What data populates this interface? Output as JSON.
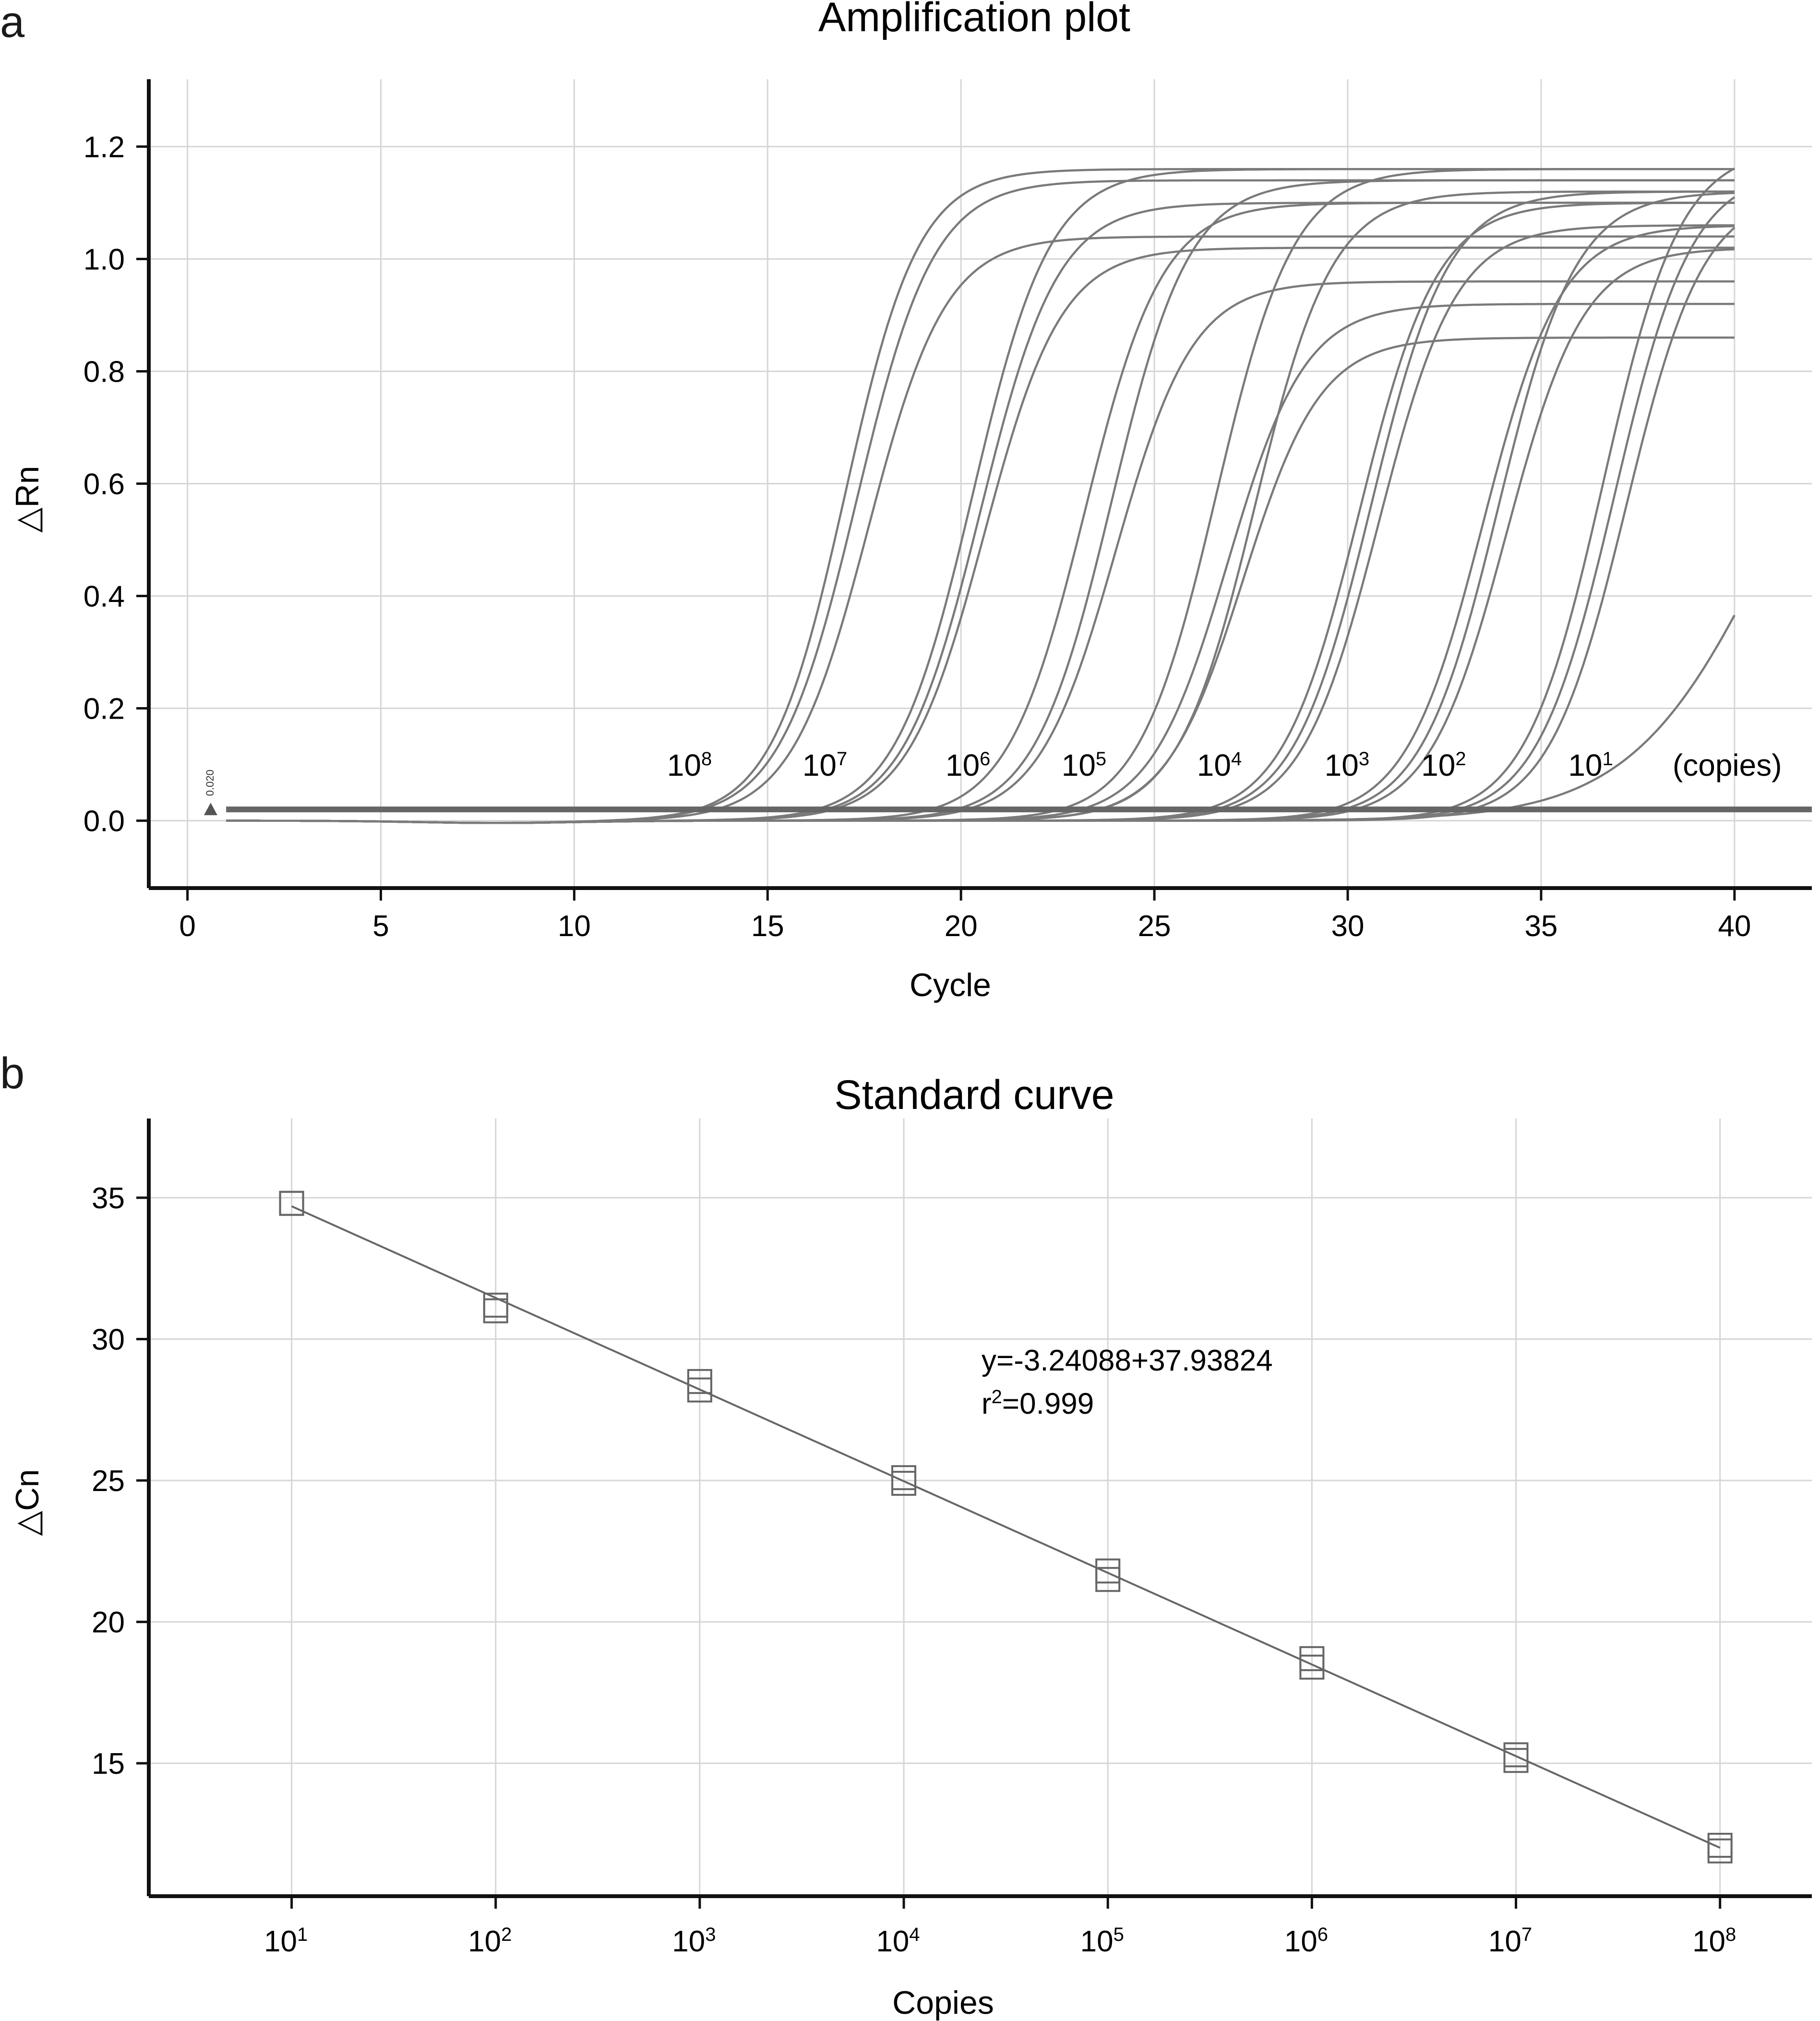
{
  "panels": {
    "a": {
      "letter": "a"
    },
    "b": {
      "letter": "b"
    }
  },
  "chart_data": [
    {
      "type": "line",
      "title": "Amplification plot",
      "xlabel": "Cycle",
      "ylabel": "△Rn",
      "xlim": [
        -1,
        42
      ],
      "ylim": [
        -0.12,
        1.32
      ],
      "xticks": [
        0,
        5,
        10,
        15,
        20,
        25,
        30,
        35,
        40
      ],
      "xtick_labels": [
        "0",
        "5",
        "10",
        "15",
        "20",
        "25",
        "30",
        "35",
        "40"
      ],
      "yticks": [
        0.0,
        0.2,
        0.4,
        0.6,
        0.8,
        1.0,
        1.2
      ],
      "ytick_labels": [
        "0.0",
        "0.2",
        "0.4",
        "0.6",
        "0.8",
        "1.0",
        "1.2"
      ],
      "threshold": 0.02,
      "threshold_label": "0.020",
      "curve_params": [
        {
          "c": 17.0,
          "plateau": 1.16,
          "k": 1.05
        },
        {
          "c": 17.3,
          "plateau": 1.14,
          "k": 1.0
        },
        {
          "c": 17.6,
          "plateau": 1.04,
          "k": 1.0
        },
        {
          "c": 20.3,
          "plateau": 1.16,
          "k": 1.0
        },
        {
          "c": 20.5,
          "plateau": 1.1,
          "k": 1.0
        },
        {
          "c": 20.6,
          "plateau": 1.02,
          "k": 1.0
        },
        {
          "c": 23.2,
          "plateau": 1.1,
          "k": 1.0
        },
        {
          "c": 23.9,
          "plateau": 1.14,
          "k": 1.0
        },
        {
          "c": 24.0,
          "plateau": 0.96,
          "k": 1.0
        },
        {
          "c": 26.6,
          "plateau": 1.16,
          "k": 1.0
        },
        {
          "c": 26.9,
          "plateau": 0.92,
          "k": 1.0
        },
        {
          "c": 27.3,
          "plateau": 0.86,
          "k": 1.0
        },
        {
          "c": 27.6,
          "plateau": 1.12,
          "k": 1.0
        },
        {
          "c": 30.3,
          "plateau": 1.1,
          "k": 1.0
        },
        {
          "c": 30.6,
          "plateau": 1.12,
          "k": 1.0
        },
        {
          "c": 30.8,
          "plateau": 1.06,
          "k": 1.0
        },
        {
          "c": 33.5,
          "plateau": 1.06,
          "k": 1.0
        },
        {
          "c": 33.9,
          "plateau": 1.12,
          "k": 1.0
        },
        {
          "c": 34.1,
          "plateau": 1.02,
          "k": 1.0
        },
        {
          "c": 36.6,
          "plateau": 1.2,
          "k": 1.0
        },
        {
          "c": 36.9,
          "plateau": 1.16,
          "k": 1.0
        },
        {
          "c": 37.2,
          "plateau": 1.12,
          "k": 1.0
        },
        {
          "c": 41.0,
          "plateau": 1.0,
          "k": 0.55
        }
      ],
      "annotations": [
        {
          "base": "10",
          "exp": "8",
          "x": 12.4
        },
        {
          "base": "10",
          "exp": "7",
          "x": 15.9
        },
        {
          "base": "10",
          "exp": "6",
          "x": 19.6
        },
        {
          "base": "10",
          "exp": "5",
          "x": 22.6
        },
        {
          "base": "10",
          "exp": "4",
          "x": 26.1
        },
        {
          "base": "10",
          "exp": "3",
          "x": 29.4
        },
        {
          "base": "10",
          "exp": "2",
          "x": 31.9
        },
        {
          "base": "10",
          "exp": "1",
          "x": 35.7
        },
        {
          "base": "(copies)",
          "exp": "",
          "x": 38.4
        }
      ],
      "annotation_y": 0.08
    },
    {
      "type": "scatter",
      "title": "Standard curve",
      "xlabel": "Copies",
      "ylabel": "△Cn",
      "xscale": "log10",
      "xlim_log": [
        0.3,
        8.45
      ],
      "ylim": [
        10.3,
        37.8
      ],
      "xticks_log": [
        1,
        2,
        3,
        4,
        5,
        6,
        7,
        8
      ],
      "xtick_labels": [
        {
          "base": "10",
          "exp": "1"
        },
        {
          "base": "10",
          "exp": "2"
        },
        {
          "base": "10",
          "exp": "3"
        },
        {
          "base": "10",
          "exp": "4"
        },
        {
          "base": "10",
          "exp": "5"
        },
        {
          "base": "10",
          "exp": "6"
        },
        {
          "base": "10",
          "exp": "7"
        },
        {
          "base": "10",
          "exp": "8"
        }
      ],
      "yticks": [
        15,
        20,
        25,
        30,
        35
      ],
      "ytick_labels": [
        "15",
        "20",
        "25",
        "30",
        "35"
      ],
      "points": [
        {
          "log_copies": 1,
          "cn": [
            34.8,
            34.8
          ]
        },
        {
          "log_copies": 2,
          "cn": [
            31.0,
            31.2
          ]
        },
        {
          "log_copies": 3,
          "cn": [
            28.2,
            28.5
          ]
        },
        {
          "log_copies": 4,
          "cn": [
            24.9,
            25.1
          ]
        },
        {
          "log_copies": 5,
          "cn": [
            21.5,
            21.8
          ]
        },
        {
          "log_copies": 6,
          "cn": [
            18.4,
            18.7
          ]
        },
        {
          "log_copies": 7,
          "cn": [
            15.1,
            15.3
          ]
        },
        {
          "log_copies": 8,
          "cn": [
            11.9,
            12.1
          ]
        }
      ],
      "fit": {
        "slope": -3.24088,
        "intercept": 37.93824
      },
      "equation": "y=-3.24088+37.93824",
      "r2_prefix": "r",
      "r2_sup": "2",
      "r2_value": "=0.999"
    }
  ]
}
